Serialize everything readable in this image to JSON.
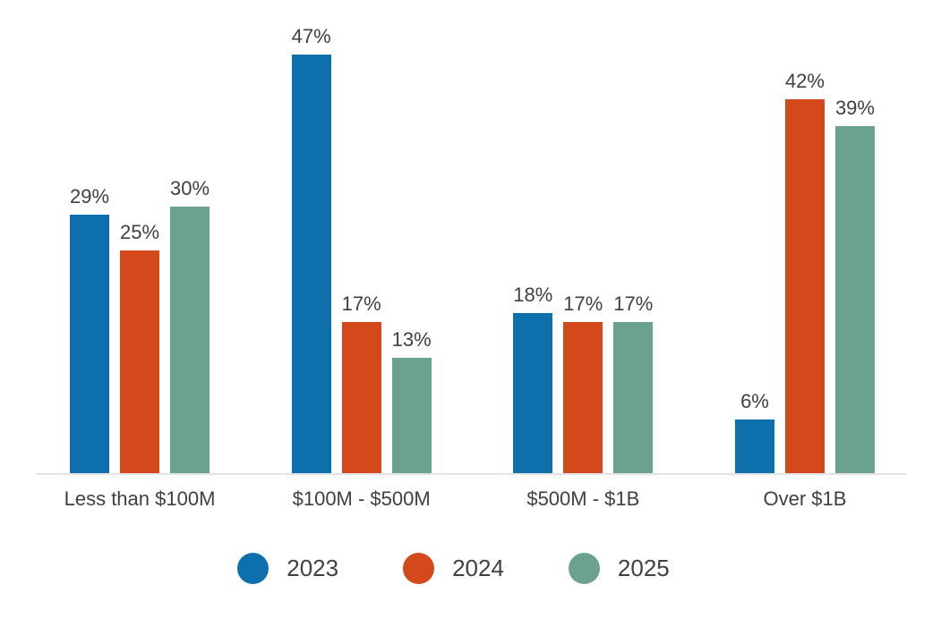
{
  "chart_data": {
    "type": "bar",
    "title": "",
    "xlabel": "",
    "ylabel": "",
    "categories": [
      "Less than $100M",
      "$100M - $500M",
      "$500M - $1B",
      "Over $1B"
    ],
    "series": [
      {
        "name": "2023",
        "color": "#0e6fad",
        "values": [
          29,
          47,
          18,
          6
        ]
      },
      {
        "name": "2024",
        "color": "#d3491b",
        "values": [
          25,
          17,
          17,
          42
        ]
      },
      {
        "name": "2025",
        "color": "#6ba28f",
        "values": [
          30,
          13,
          17,
          39
        ]
      }
    ],
    "value_suffix": "%",
    "data_labels": {
      "Less than $100M": [
        "29%",
        "25%",
        "30%"
      ],
      "$100M - $500M": [
        "47%",
        "17%",
        "13%"
      ],
      "$500M - $1B": [
        "18%",
        "17%",
        "17%"
      ],
      "Over $1B": [
        "6%",
        "42%",
        "39%"
      ]
    },
    "ylim": [
      0,
      50
    ],
    "grid": false,
    "y_axis_ticks_visible": false,
    "legend": {
      "position": "bottom",
      "entries": [
        "2023",
        "2024",
        "2025"
      ]
    },
    "colors": {
      "axis_line": "#e4e4e6",
      "label_text": "#404040",
      "background": "#ffffff"
    }
  }
}
